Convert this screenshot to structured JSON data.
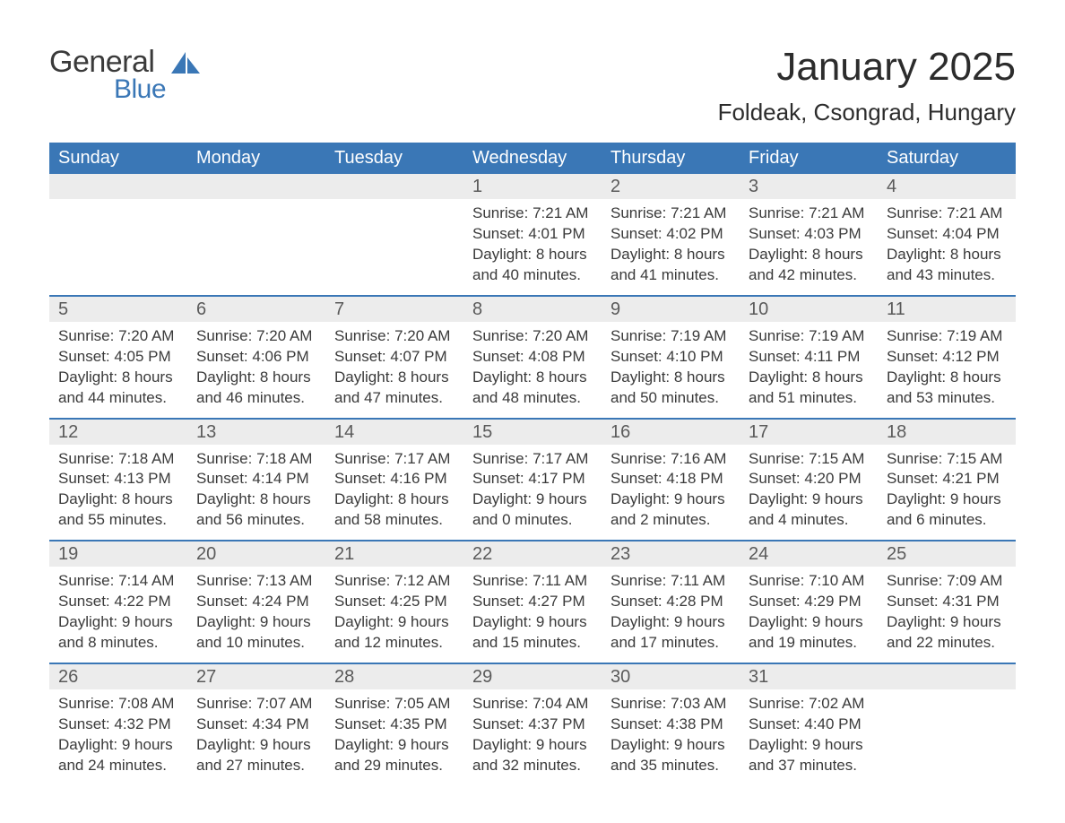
{
  "logo": {
    "word1": "General",
    "word2": "Blue"
  },
  "header": {
    "month_title": "January 2025",
    "location": "Foldeak, Csongrad, Hungary"
  },
  "colors": {
    "brand_blue": "#3a77b6",
    "daynum_bg": "#ececec",
    "text": "#3a3a3a",
    "title_text": "#2c2c2c",
    "bg": "#ffffff"
  },
  "typography": {
    "month_title_fontsize": 44,
    "location_fontsize": 26,
    "dow_fontsize": 20,
    "daynum_fontsize": 20,
    "body_fontsize": 17
  },
  "calendar": {
    "days_of_week": [
      "Sunday",
      "Monday",
      "Tuesday",
      "Wednesday",
      "Thursday",
      "Friday",
      "Saturday"
    ],
    "weeks": [
      [
        null,
        null,
        null,
        {
          "n": "1",
          "sunrise": "Sunrise: 7:21 AM",
          "sunset": "Sunset: 4:01 PM",
          "dl1": "Daylight: 8 hours",
          "dl2": "and 40 minutes."
        },
        {
          "n": "2",
          "sunrise": "Sunrise: 7:21 AM",
          "sunset": "Sunset: 4:02 PM",
          "dl1": "Daylight: 8 hours",
          "dl2": "and 41 minutes."
        },
        {
          "n": "3",
          "sunrise": "Sunrise: 7:21 AM",
          "sunset": "Sunset: 4:03 PM",
          "dl1": "Daylight: 8 hours",
          "dl2": "and 42 minutes."
        },
        {
          "n": "4",
          "sunrise": "Sunrise: 7:21 AM",
          "sunset": "Sunset: 4:04 PM",
          "dl1": "Daylight: 8 hours",
          "dl2": "and 43 minutes."
        }
      ],
      [
        {
          "n": "5",
          "sunrise": "Sunrise: 7:20 AM",
          "sunset": "Sunset: 4:05 PM",
          "dl1": "Daylight: 8 hours",
          "dl2": "and 44 minutes."
        },
        {
          "n": "6",
          "sunrise": "Sunrise: 7:20 AM",
          "sunset": "Sunset: 4:06 PM",
          "dl1": "Daylight: 8 hours",
          "dl2": "and 46 minutes."
        },
        {
          "n": "7",
          "sunrise": "Sunrise: 7:20 AM",
          "sunset": "Sunset: 4:07 PM",
          "dl1": "Daylight: 8 hours",
          "dl2": "and 47 minutes."
        },
        {
          "n": "8",
          "sunrise": "Sunrise: 7:20 AM",
          "sunset": "Sunset: 4:08 PM",
          "dl1": "Daylight: 8 hours",
          "dl2": "and 48 minutes."
        },
        {
          "n": "9",
          "sunrise": "Sunrise: 7:19 AM",
          "sunset": "Sunset: 4:10 PM",
          "dl1": "Daylight: 8 hours",
          "dl2": "and 50 minutes."
        },
        {
          "n": "10",
          "sunrise": "Sunrise: 7:19 AM",
          "sunset": "Sunset: 4:11 PM",
          "dl1": "Daylight: 8 hours",
          "dl2": "and 51 minutes."
        },
        {
          "n": "11",
          "sunrise": "Sunrise: 7:19 AM",
          "sunset": "Sunset: 4:12 PM",
          "dl1": "Daylight: 8 hours",
          "dl2": "and 53 minutes."
        }
      ],
      [
        {
          "n": "12",
          "sunrise": "Sunrise: 7:18 AM",
          "sunset": "Sunset: 4:13 PM",
          "dl1": "Daylight: 8 hours",
          "dl2": "and 55 minutes."
        },
        {
          "n": "13",
          "sunrise": "Sunrise: 7:18 AM",
          "sunset": "Sunset: 4:14 PM",
          "dl1": "Daylight: 8 hours",
          "dl2": "and 56 minutes."
        },
        {
          "n": "14",
          "sunrise": "Sunrise: 7:17 AM",
          "sunset": "Sunset: 4:16 PM",
          "dl1": "Daylight: 8 hours",
          "dl2": "and 58 minutes."
        },
        {
          "n": "15",
          "sunrise": "Sunrise: 7:17 AM",
          "sunset": "Sunset: 4:17 PM",
          "dl1": "Daylight: 9 hours",
          "dl2": "and 0 minutes."
        },
        {
          "n": "16",
          "sunrise": "Sunrise: 7:16 AM",
          "sunset": "Sunset: 4:18 PM",
          "dl1": "Daylight: 9 hours",
          "dl2": "and 2 minutes."
        },
        {
          "n": "17",
          "sunrise": "Sunrise: 7:15 AM",
          "sunset": "Sunset: 4:20 PM",
          "dl1": "Daylight: 9 hours",
          "dl2": "and 4 minutes."
        },
        {
          "n": "18",
          "sunrise": "Sunrise: 7:15 AM",
          "sunset": "Sunset: 4:21 PM",
          "dl1": "Daylight: 9 hours",
          "dl2": "and 6 minutes."
        }
      ],
      [
        {
          "n": "19",
          "sunrise": "Sunrise: 7:14 AM",
          "sunset": "Sunset: 4:22 PM",
          "dl1": "Daylight: 9 hours",
          "dl2": "and 8 minutes."
        },
        {
          "n": "20",
          "sunrise": "Sunrise: 7:13 AM",
          "sunset": "Sunset: 4:24 PM",
          "dl1": "Daylight: 9 hours",
          "dl2": "and 10 minutes."
        },
        {
          "n": "21",
          "sunrise": "Sunrise: 7:12 AM",
          "sunset": "Sunset: 4:25 PM",
          "dl1": "Daylight: 9 hours",
          "dl2": "and 12 minutes."
        },
        {
          "n": "22",
          "sunrise": "Sunrise: 7:11 AM",
          "sunset": "Sunset: 4:27 PM",
          "dl1": "Daylight: 9 hours",
          "dl2": "and 15 minutes."
        },
        {
          "n": "23",
          "sunrise": "Sunrise: 7:11 AM",
          "sunset": "Sunset: 4:28 PM",
          "dl1": "Daylight: 9 hours",
          "dl2": "and 17 minutes."
        },
        {
          "n": "24",
          "sunrise": "Sunrise: 7:10 AM",
          "sunset": "Sunset: 4:29 PM",
          "dl1": "Daylight: 9 hours",
          "dl2": "and 19 minutes."
        },
        {
          "n": "25",
          "sunrise": "Sunrise: 7:09 AM",
          "sunset": "Sunset: 4:31 PM",
          "dl1": "Daylight: 9 hours",
          "dl2": "and 22 minutes."
        }
      ],
      [
        {
          "n": "26",
          "sunrise": "Sunrise: 7:08 AM",
          "sunset": "Sunset: 4:32 PM",
          "dl1": "Daylight: 9 hours",
          "dl2": "and 24 minutes."
        },
        {
          "n": "27",
          "sunrise": "Sunrise: 7:07 AM",
          "sunset": "Sunset: 4:34 PM",
          "dl1": "Daylight: 9 hours",
          "dl2": "and 27 minutes."
        },
        {
          "n": "28",
          "sunrise": "Sunrise: 7:05 AM",
          "sunset": "Sunset: 4:35 PM",
          "dl1": "Daylight: 9 hours",
          "dl2": "and 29 minutes."
        },
        {
          "n": "29",
          "sunrise": "Sunrise: 7:04 AM",
          "sunset": "Sunset: 4:37 PM",
          "dl1": "Daylight: 9 hours",
          "dl2": "and 32 minutes."
        },
        {
          "n": "30",
          "sunrise": "Sunrise: 7:03 AM",
          "sunset": "Sunset: 4:38 PM",
          "dl1": "Daylight: 9 hours",
          "dl2": "and 35 minutes."
        },
        {
          "n": "31",
          "sunrise": "Sunrise: 7:02 AM",
          "sunset": "Sunset: 4:40 PM",
          "dl1": "Daylight: 9 hours",
          "dl2": "and 37 minutes."
        },
        null
      ]
    ]
  }
}
